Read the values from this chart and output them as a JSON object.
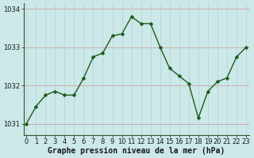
{
  "x": [
    0,
    1,
    2,
    3,
    4,
    5,
    6,
    7,
    8,
    9,
    10,
    11,
    12,
    13,
    14,
    15,
    16,
    17,
    18,
    19,
    20,
    21,
    22,
    23
  ],
  "y": [
    1031.0,
    1031.45,
    1031.75,
    1031.85,
    1031.75,
    1031.75,
    1032.2,
    1032.75,
    1032.85,
    1033.3,
    1033.35,
    1033.8,
    1033.62,
    1033.62,
    1033.0,
    1032.45,
    1032.25,
    1032.05,
    1031.15,
    1031.85,
    1032.1,
    1032.2,
    1032.75,
    1033.0
  ],
  "line_color": "#1a5c1a",
  "marker_color": "#1a5c1a",
  "bg_color": "#cce8e8",
  "grid_color_h": "#d4a0a0",
  "grid_color_v": "#b8d4d4",
  "axis_color": "#1a5c1a",
  "xlabel": "Graphe pression niveau de la mer (hPa)",
  "ylim_min": 1030.7,
  "ylim_max": 1034.15,
  "xlim_min": -0.3,
  "xlim_max": 23.3,
  "yticks": [
    1031,
    1032,
    1033,
    1034
  ],
  "xticks": [
    0,
    1,
    2,
    3,
    4,
    5,
    6,
    7,
    8,
    9,
    10,
    11,
    12,
    13,
    14,
    15,
    16,
    17,
    18,
    19,
    20,
    21,
    22,
    23
  ],
  "xlabel_fontsize": 7,
  "tick_fontsize": 6,
  "line_width": 1.0,
  "marker_size": 2.5
}
